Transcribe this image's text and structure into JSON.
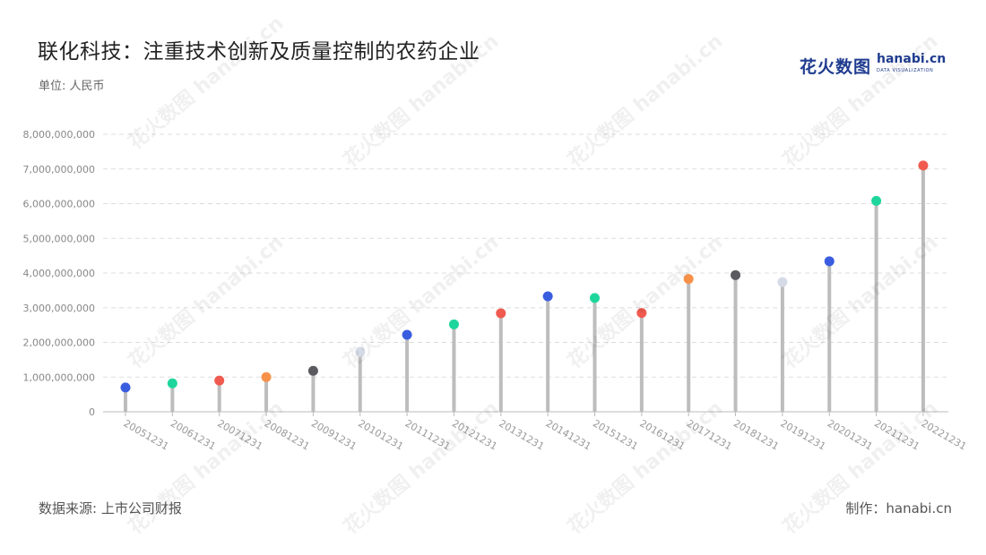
{
  "header": {
    "title": "联化科技：注重技术创新及质量控制的农药企业",
    "unit": "单位: 人民币",
    "logo_cn": "花火数图",
    "logo_en": "hanabi.cn",
    "logo_sub": "DATA VISUALIZATION"
  },
  "footer": {
    "source": "数据来源: 上市公司财报",
    "credit": "制作：hanabi.cn"
  },
  "colors": {
    "stem": "#bdbdbd",
    "grid": "#dddddd",
    "palette": [
      "#3a5de0",
      "#1ed69b",
      "#f05a4f",
      "#f7914a",
      "#5a5a60",
      "#d5dbe6"
    ]
  },
  "chart_data": {
    "type": "lollipop",
    "categories": [
      "20051231",
      "20061231",
      "20071231",
      "20081231",
      "20091231",
      "20101231",
      "20111231",
      "20121231",
      "20131231",
      "20141231",
      "20151231",
      "20161231",
      "20171231",
      "20181231",
      "20191231",
      "20201231",
      "20211231",
      "20221231"
    ],
    "values": [
      700000000,
      820000000,
      900000000,
      1000000000,
      1180000000,
      1730000000,
      2220000000,
      2520000000,
      2840000000,
      3330000000,
      3280000000,
      2850000000,
      3830000000,
      3940000000,
      3740000000,
      4340000000,
      6080000000,
      7100000000
    ],
    "dot_colors": [
      "#3a5de0",
      "#1ed69b",
      "#f05a4f",
      "#f7914a",
      "#5a5a60",
      "#d5dbe6",
      "#3a5de0",
      "#1ed69b",
      "#f05a4f",
      "#3a5de0",
      "#1ed69b",
      "#f05a4f",
      "#f7914a",
      "#5a5a60",
      "#d5dbe6",
      "#3a5de0",
      "#1ed69b",
      "#f05a4f"
    ],
    "y_ticks": [
      "0",
      "1,000,000,000",
      "2,000,000,000",
      "3,000,000,000",
      "4,000,000,000",
      "5,000,000,000",
      "6,000,000,000",
      "7,000,000,000",
      "8,000,000,000"
    ],
    "ylim": [
      0,
      8000000000
    ],
    "grid": true
  }
}
